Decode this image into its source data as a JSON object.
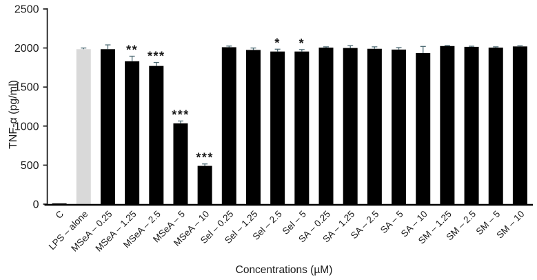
{
  "chart_data": {
    "type": "bar",
    "title": "",
    "xlabel": "Concentrations (µM)",
    "ylabel": "TNF-α (pg/ml)",
    "ylim": [
      0,
      2500
    ],
    "yticks": [
      0,
      500,
      1000,
      1500,
      2000,
      2500
    ],
    "grid": false,
    "legend_position": "none",
    "categories": [
      "C",
      "LPS – alone",
      "MSeA – 0.25",
      "MSeA – 1.25",
      "MSeA – 2.5",
      "MSeA – 5",
      "MSeA – 10",
      "Sel – 0.25",
      "Sel – 1.25",
      "Sel – 2.5",
      "Sel – 5",
      "SA – 0.25",
      "SA – 1.25",
      "SA – 2.5",
      "SA – 5",
      "SA – 10",
      "SM – 1.25",
      "SM – 2.5",
      "SM – 5",
      "SM – 10"
    ],
    "values": [
      10,
      1985,
      1985,
      1830,
      1770,
      1035,
      490,
      2010,
      1975,
      1955,
      1955,
      2005,
      2000,
      1990,
      1980,
      1935,
      2025,
      2015,
      2005,
      2020
    ],
    "errors": [
      0,
      15,
      55,
      65,
      45,
      30,
      25,
      15,
      25,
      30,
      25,
      10,
      30,
      25,
      25,
      85,
      8,
      8,
      10,
      8
    ],
    "significance": [
      "",
      "",
      "",
      "**",
      "***",
      "***",
      "***",
      "",
      "",
      "*",
      "*",
      "",
      "",
      "",
      "",
      "",
      "",
      "",
      "",
      ""
    ],
    "bar_colors": [
      "#000000",
      "#d9d9d9",
      "#000000",
      "#000000",
      "#000000",
      "#000000",
      "#000000",
      "#000000",
      "#000000",
      "#000000",
      "#000000",
      "#000000",
      "#000000",
      "#000000",
      "#000000",
      "#000000",
      "#000000",
      "#000000",
      "#000000",
      "#000000"
    ],
    "colors": {
      "error_bar": "#4d6a73",
      "axis": "#000000",
      "text": "#1a1a1a",
      "background": "#ffffff"
    }
  }
}
